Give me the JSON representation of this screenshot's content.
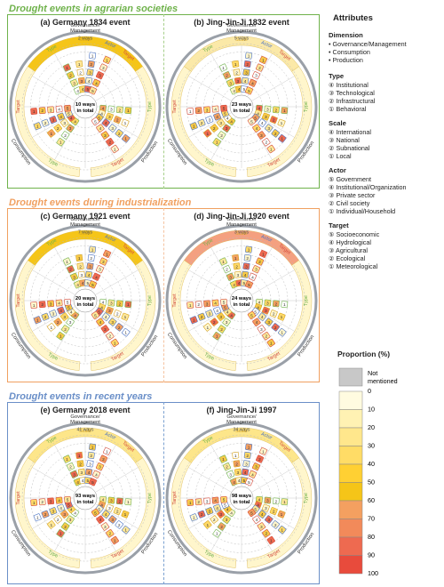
{
  "sections": [
    {
      "title": "Drought events in agrarian societies",
      "color": "#6fb24b"
    },
    {
      "title": "Drought events during industrialization",
      "color": "#f0a060"
    },
    {
      "title": "Drought events in recent years",
      "color": "#6a8fc8"
    }
  ],
  "panels": [
    {
      "title": "(a) Germany 1834 event",
      "top_ways": "2 ways",
      "center_l1": "10 ways",
      "center_l2": "in total",
      "fill": "#f5c518"
    },
    {
      "title": "(b) Jing-Jin-Ji 1832 event",
      "top_ways": "5 ways",
      "center_l1": "23 ways",
      "center_l2": "in total",
      "fill": "#fbe9a8"
    },
    {
      "title": "(c) Germany 1921 event",
      "top_ways": "7 ways",
      "center_l1": "20 ways",
      "center_l2": "in total",
      "fill": "#f5c518"
    },
    {
      "title": "(d) Jing-Jin-Ji 1920 event",
      "top_ways": "3 ways",
      "center_l1": "24 ways",
      "center_l2": "in total",
      "fill": "#f4a080"
    },
    {
      "title": "(e) Germany 2018 event",
      "top_ways": "41 ways",
      "center_l1": "93 ways",
      "center_l2": "in total",
      "fill": "#fde68a"
    },
    {
      "title": "(f) Jing-Jin-Ji 1997",
      "top_ways": "34 ways",
      "center_l1": "98 ways",
      "center_l2": "in total",
      "fill": "#fde68a"
    }
  ],
  "ring_labels": {
    "top": "Governance/",
    "top2": "Management",
    "left": "Consumption",
    "right": "Production"
  },
  "spoke_labels": {
    "type": "Type",
    "scale": "Scale",
    "actor": "Actor",
    "target": "Target"
  },
  "legend": {
    "title": "Attributes",
    "dimension": {
      "heading": "Dimension",
      "items": [
        "• Governance/Management",
        "• Consumption",
        "• Production"
      ]
    },
    "type": {
      "heading": "Type",
      "items": [
        "④ Institutional",
        "③ Technological",
        "② Infrastructural",
        "① Behavioral"
      ]
    },
    "scale": {
      "heading": "Scale",
      "items": [
        "④ International",
        "③ National",
        "② Subnational",
        "① Local"
      ]
    },
    "actor": {
      "heading": "Actor",
      "items": [
        "⑤ Government",
        "④ Institutional/Organization",
        "③ Private sector",
        "② Civil society",
        "① Individual/Household"
      ]
    },
    "target": {
      "heading": "Target",
      "items": [
        "⑤ Socioeconomic",
        "④ Hydrological",
        "③ Agricultural",
        "② Ecological",
        "① Meteorological"
      ]
    }
  },
  "proportion": {
    "title": "Proportion (%)",
    "not_mentioned": "Not mentioned",
    "ticks": [
      "0",
      "10",
      "20",
      "30",
      "40",
      "50",
      "60",
      "70",
      "80",
      "90",
      "100"
    ],
    "colors": [
      "#fffbe0",
      "#fff2b3",
      "#ffe78c",
      "#ffdc66",
      "#ffd033",
      "#f5c518",
      "#f4a060",
      "#f28a5a",
      "#ee6a50",
      "#e84b3c"
    ],
    "nm_color": "#c8c8c8"
  }
}
